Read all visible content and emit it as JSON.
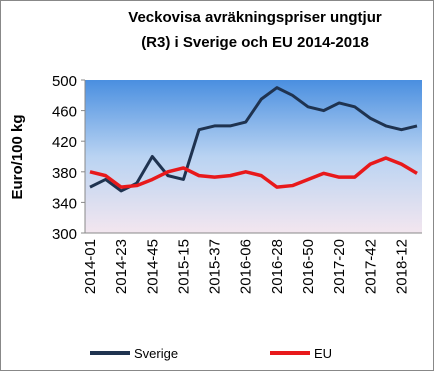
{
  "chart_data": {
    "type": "line",
    "title": "Veckovisa avräkningspriser ungtjur",
    "subtitle": "(R3) i Sverige och EU 2014-2018",
    "ylabel": "Euro/100 kg",
    "categories": [
      "2014-01",
      null,
      "2014-23",
      null,
      "2014-45",
      null,
      "2015-15",
      null,
      "2015-37",
      null,
      "2016-06",
      null,
      "2016-28",
      null,
      "2016-50",
      null,
      "2017-20",
      null,
      "2017-42",
      null,
      "2018-12",
      null
    ],
    "series": [
      {
        "name": "Sverige",
        "color": "#1f3350",
        "values": [
          360,
          370,
          355,
          365,
          400,
          375,
          370,
          435,
          440,
          440,
          445,
          475,
          490,
          480,
          465,
          460,
          470,
          465,
          450,
          440,
          435,
          440
        ]
      },
      {
        "name": "EU",
        "color": "#e8191b",
        "values": [
          380,
          375,
          360,
          362,
          370,
          380,
          385,
          375,
          373,
          375,
          380,
          375,
          360,
          362,
          370,
          378,
          373,
          373,
          390,
          398,
          390,
          378
        ]
      }
    ],
    "ylim": [
      300,
      500
    ],
    "yticks": [
      300,
      340,
      380,
      420,
      460,
      500
    ],
    "grid": false,
    "legend": "bottom"
  }
}
